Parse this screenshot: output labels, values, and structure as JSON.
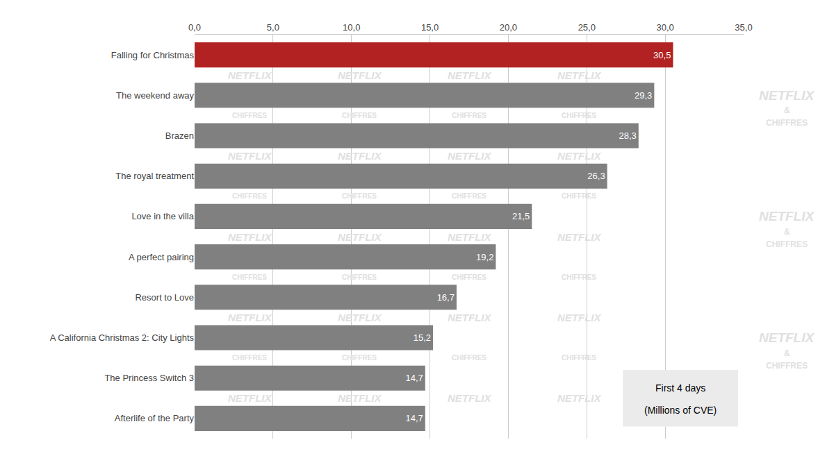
{
  "chart_data": {
    "type": "bar",
    "orientation": "horizontal",
    "categories": [
      "Afterlife of the Party",
      "The Princess Switch 3",
      "A California Christmas 2: City Lights",
      "Resort to Love",
      "A perfect pairing",
      "Love in the villa",
      "The royal treatment",
      "Brazen",
      "The weekend away",
      "Falling for Christmas"
    ],
    "values": [
      14.7,
      14.7,
      15.2,
      16.7,
      19.2,
      21.5,
      26.3,
      28.3,
      29.3,
      30.5
    ],
    "value_labels": [
      "14,7",
      "14,7",
      "15,2",
      "16,7",
      "19,2",
      "21,5",
      "26,3",
      "28,3",
      "29,3",
      "30,5"
    ],
    "data_labels": true,
    "colors": [
      "#808080",
      "#808080",
      "#808080",
      "#808080",
      "#808080",
      "#808080",
      "#808080",
      "#808080",
      "#808080",
      "#b22222"
    ],
    "xlim": [
      0,
      35
    ],
    "xticks": [
      {
        "value": 0,
        "label": "0,0"
      },
      {
        "value": 5,
        "label": "5,0"
      },
      {
        "value": 10,
        "label": "10,0"
      },
      {
        "value": 15,
        "label": "15,0"
      },
      {
        "value": 20,
        "label": "20,0"
      },
      {
        "value": 25,
        "label": "25,0"
      },
      {
        "value": 30,
        "label": "30,0"
      },
      {
        "value": 35,
        "label": "35,0"
      }
    ],
    "grid": true,
    "annotations": [
      "NETFLIX",
      "&",
      "CHIFFRES",
      "First 4 days",
      "(Millions of CVE)"
    ]
  }
}
